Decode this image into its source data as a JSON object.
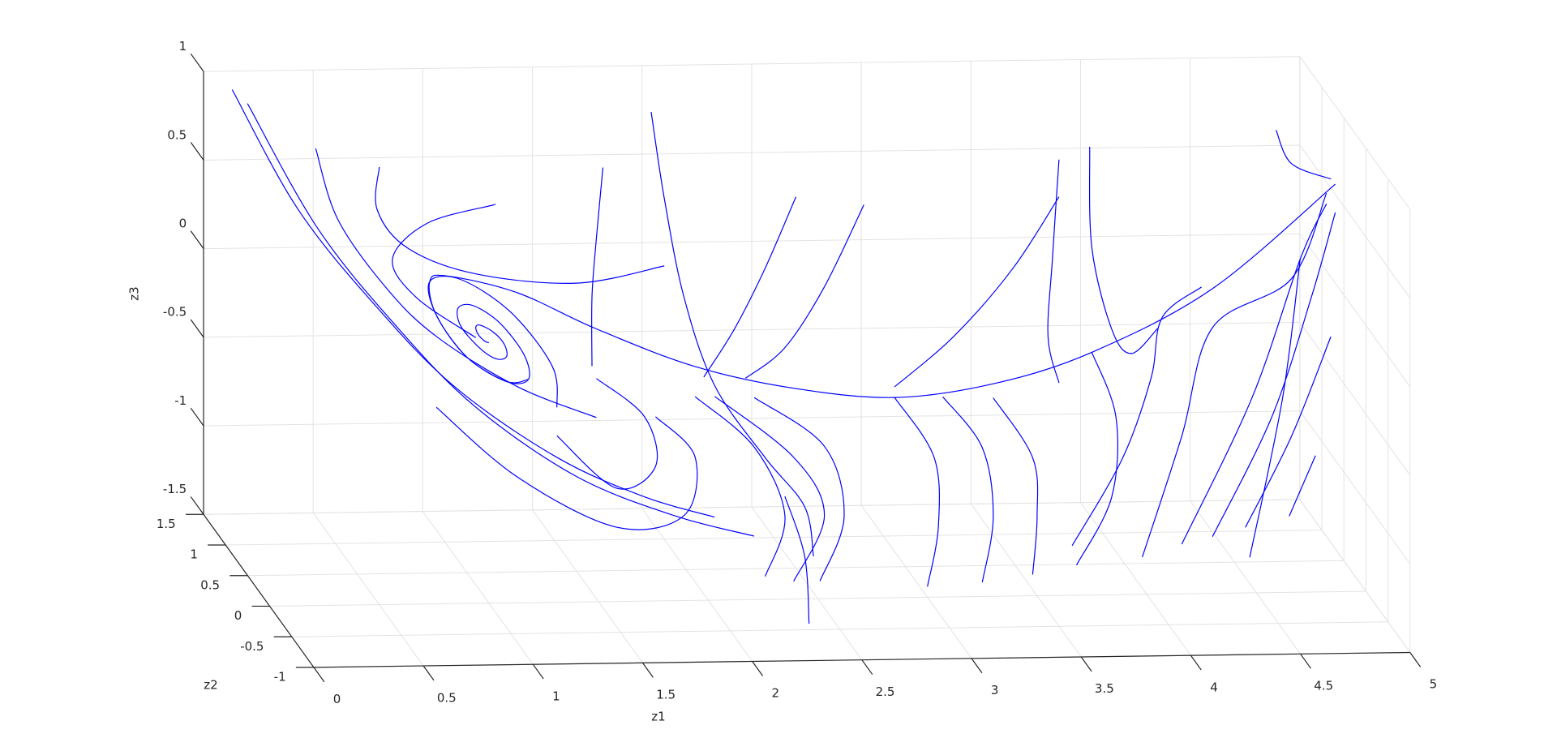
{
  "chart_data": {
    "type": "line",
    "xlabel": "z1",
    "ylabel": "z2",
    "zlabel": "z3",
    "xlim": [
      0,
      5
    ],
    "xticks": [
      0,
      0.5,
      1,
      1.5,
      2,
      2.5,
      3,
      3.5,
      4,
      4.5,
      5
    ],
    "ylim": [
      -1,
      1.5
    ],
    "yticks": [
      -1,
      -0.5,
      0,
      0.5,
      1,
      1.5
    ],
    "zlim": [
      -1.5,
      1
    ],
    "zticks": [
      -1.5,
      -1,
      -0.5,
      0,
      0.5,
      1
    ],
    "grid": true,
    "color": "#0000ff",
    "series": [
      {
        "z2": 0,
        "z1": [
          4.86,
          4.3,
          3.75,
          3.3,
          2.85,
          2.39,
          1.94,
          1.49,
          1.13,
          0.81,
          0.73,
          0.76,
          0.9,
          1.08,
          1.18,
          1.16,
          1.05,
          0.93,
          0.86,
          0.87,
          0.95,
          1.03,
          1.08,
          1.07,
          1.02,
          0.96,
          0.94,
          0.95,
          0.98,
          1.0
        ],
        "z3": [
          0.8,
          0.22,
          -0.13,
          -0.3,
          -0.37,
          -0.31,
          -0.18,
          0.04,
          0.25,
          0.35,
          0.32,
          0.13,
          -0.11,
          -0.25,
          -0.24,
          -0.1,
          0.08,
          0.18,
          0.17,
          0.07,
          -0.05,
          -0.12,
          -0.11,
          -0.04,
          0.03,
          0.07,
          0.06,
          0.02,
          -0.02,
          -0.03
        ]
      },
      {
        "z2": 0,
        "z1": [
          1.31,
          1.29,
          1.1,
          0.87,
          0.73,
          0.76,
          0.9,
          1.08,
          1.18
        ],
        "z3": [
          -0.4,
          -0.17,
          0.14,
          0.33,
          0.32,
          0.13,
          -0.11,
          -0.25,
          -0.24
        ]
      },
      {
        "z2": 1,
        "z1": [
          0.03,
          0.33,
          0.69,
          1.05,
          1.51,
          1.91,
          2.23
        ],
        "z3": [
          1.07,
          0.39,
          -0.17,
          -0.63,
          -1.03,
          -1.26,
          -1.38
        ]
      },
      {
        "z2": 1,
        "z1": [
          0.1,
          0.42,
          0.78,
          1.14,
          1.6,
          2.05,
          2.41
        ],
        "z3": [
          0.99,
          0.28,
          -0.28,
          -0.74,
          -1.14,
          -1.37,
          -1.49
        ]
      },
      {
        "z2": 0,
        "z1": [
          0.21,
          0.31,
          0.53,
          0.76,
          1.13,
          1.49
        ],
        "z3": [
          1.08,
          0.68,
          0.29,
          0.01,
          -0.28,
          -0.46
        ]
      },
      {
        "z2": 0,
        "z1": [
          0.5,
          0.49,
          0.63,
          0.94,
          1.4,
          1.8
        ],
        "z3": [
          0.97,
          0.73,
          0.51,
          0.36,
          0.3,
          0.39
        ]
      },
      {
        "z2": 0,
        "z1": [
          1.03,
          0.72,
          0.56,
          0.67,
          0.94
        ],
        "z3": [
          0.75,
          0.65,
          0.45,
          0.23,
          0.0
        ]
      },
      {
        "z2": 0,
        "z1": [
          1.52,
          1.49,
          1.47,
          1.47
        ],
        "z3": [
          0.95,
          0.55,
          0.22,
          -0.17
        ]
      },
      {
        "z2": 0,
        "z1": [
          1.74,
          1.8,
          1.89,
          2.03,
          2.26,
          2.44,
          2.48
        ],
        "z3": [
          1.26,
          0.77,
          0.21,
          -0.29,
          -0.7,
          -0.98,
          -1.26
        ]
      },
      {
        "z2": 0,
        "z1": [
          2.4,
          2.26,
          2.12,
          1.98
        ],
        "z3": [
          0.77,
          0.37,
          0.03,
          -0.24
        ]
      },
      {
        "z2": 0,
        "z1": [
          2.71,
          2.53,
          2.35,
          2.17
        ],
        "z3": [
          0.72,
          0.26,
          -0.08,
          -0.25
        ]
      },
      {
        "z2": 0,
        "z1": [
          3.6,
          3.39,
          3.12,
          2.85
        ],
        "z3": [
          0.75,
          0.35,
          -0.03,
          -0.31
        ]
      },
      {
        "z2": 0,
        "z1": [
          3.6,
          3.57,
          3.55,
          3.6
        ],
        "z3": [
          0.96,
          0.4,
          -0.04,
          -0.3
        ]
      },
      {
        "z2": 0,
        "z1": [
          3.74,
          3.75,
          3.84,
          3.93,
          4.05
        ],
        "z3": [
          1.03,
          0.46,
          0.0,
          -0.14,
          0.0
        ]
      },
      {
        "z2": 0,
        "z1": [
          4.59,
          4.66,
          4.84
        ],
        "z3": [
          1.11,
          0.92,
          0.83
        ]
      },
      {
        "z2": 0,
        "z1": [
          1.94,
          2.21,
          2.35,
          2.26
        ],
        "z3": [
          -0.35,
          -0.64,
          -1.03,
          -1.37
        ]
      },
      {
        "z2": 0,
        "z1": [
          2.03,
          2.39,
          2.53,
          2.39
        ],
        "z3": [
          -0.35,
          -0.7,
          -1.03,
          -1.4
        ]
      },
      {
        "z2": 0,
        "z1": [
          2.21,
          2.53,
          2.62,
          2.51
        ],
        "z3": [
          -0.36,
          -0.64,
          -1.04,
          -1.4
        ]
      },
      {
        "z2": 0,
        "z1": [
          2.85,
          3.03,
          3.05,
          3.0
        ],
        "z3": [
          -0.37,
          -0.71,
          -1.1,
          -1.44
        ]
      },
      {
        "z2": 0,
        "z1": [
          3.07,
          3.25,
          3.3,
          3.25
        ],
        "z3": [
          -0.37,
          -0.66,
          -1.05,
          -1.42
        ]
      },
      {
        "z2": 0,
        "z1": [
          3.3,
          3.48,
          3.5,
          3.48
        ],
        "z3": [
          -0.38,
          -0.72,
          -1.05,
          -1.38
        ]
      },
      {
        "z2": 0,
        "z1": [
          3.75,
          3.86,
          3.84,
          3.68
        ],
        "z3": [
          -0.13,
          -0.5,
          -0.95,
          -1.33
        ]
      },
      {
        "z2": 0,
        "z1": [
          3.66,
          3.89,
          4.02,
          4.07,
          4.25
        ],
        "z3": [
          -1.22,
          -0.73,
          -0.28,
          0.06,
          0.23
        ]
      },
      {
        "z2": 0,
        "z1": [
          3.98,
          4.16,
          4.3,
          4.66,
          4.82
        ],
        "z3": [
          -1.29,
          -0.61,
          0.0,
          0.27,
          0.75
        ]
      },
      {
        "z2": 0,
        "z1": [
          4.16,
          4.48,
          4.7,
          4.82
        ],
        "z3": [
          -1.22,
          -0.4,
          0.38,
          0.69
        ]
      },
      {
        "z2": 0,
        "z1": [
          4.3,
          4.57,
          4.75,
          4.86
        ],
        "z3": [
          -1.18,
          -0.51,
          0.16,
          0.64
        ]
      },
      {
        "z2": 0,
        "z1": [
          4.47,
          4.62,
          4.7
        ],
        "z3": [
          -1.3,
          -0.4,
          0.38
        ]
      },
      {
        "z2": 0,
        "z1": [
          4.45,
          4.66,
          4.84
        ],
        "z3": [
          -1.13,
          -0.62,
          -0.06
        ]
      },
      {
        "z2": 0,
        "z1": [
          4.65,
          4.77
        ],
        "z3": [
          -1.07,
          -0.73
        ]
      },
      {
        "z2": 0,
        "z1": [
          2.35,
          2.44,
          2.46
        ],
        "z3": [
          -0.92,
          -1.26,
          -1.64
        ]
      },
      {
        "z2": 0,
        "z1": [
          0.76,
          1.13,
          1.58,
          1.89,
          1.94,
          1.76
        ],
        "z3": [
          -0.39,
          -0.79,
          -1.08,
          -1.02,
          -0.69,
          -0.46
        ]
      },
      {
        "z2": 0,
        "z1": [
          1.31,
          1.58,
          1.76,
          1.71,
          1.49
        ],
        "z3": [
          -0.56,
          -0.86,
          -0.74,
          -0.46,
          -0.24
        ]
      }
    ]
  }
}
